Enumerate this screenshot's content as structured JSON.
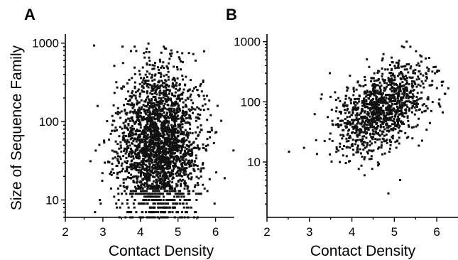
{
  "chart_data": [
    {
      "type": "scatter",
      "panel_label": "A",
      "xlabel": "Contact Density",
      "ylabel": "Size of Sequence Family",
      "xlim": [
        2,
        6.5
      ],
      "ylim": [
        6,
        1200
      ],
      "yscale": "log",
      "xticks": [
        "2",
        "3",
        "4",
        "5",
        "6"
      ],
      "yticks": [
        "10",
        "100",
        "1000"
      ],
      "grid": false,
      "distribution": {
        "x_center": 4.5,
        "x_spread": 0.55,
        "y_log_center": 1.7,
        "y_log_spread": 0.48,
        "n_points": 2600,
        "quantized_rows": [
          6,
          7,
          8,
          9,
          10,
          11,
          12,
          13,
          14
        ]
      }
    },
    {
      "type": "scatter",
      "panel_label": "B",
      "xlabel": "Contact Density",
      "ylabel": "",
      "xlim": [
        2,
        6.5
      ],
      "ylim": [
        1.2,
        1200
      ],
      "yscale": "log",
      "xticks": [
        "2",
        "3",
        "4",
        "5",
        "6"
      ],
      "yticks": [
        "10",
        "100",
        "1000"
      ],
      "grid": false,
      "distribution": {
        "x_center": 4.7,
        "x_spread": 0.55,
        "y_log_center": 1.88,
        "y_log_spread": 0.38,
        "x_y_correlation": 0.45,
        "n_points": 1200,
        "quantized_rows": [
          2,
          3,
          4,
          5,
          6,
          7
        ]
      }
    }
  ]
}
